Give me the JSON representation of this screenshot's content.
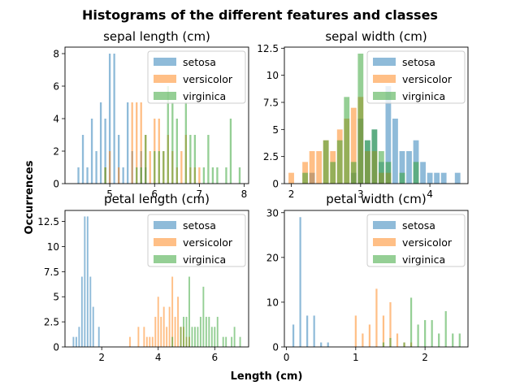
{
  "figure": {
    "title": "Histograms of the different features and classes",
    "xlabel": "Length (cm)",
    "ylabel": "Occurrences"
  },
  "legend_entries": [
    "setosa",
    "versicolor",
    "virginica"
  ],
  "colors": {
    "setosa": "#1f77b4",
    "versicolor": "#ff7f0e",
    "virginica": "#2ca02c"
  },
  "chart_data": [
    {
      "type": "bar",
      "title": "sepal length (cm)",
      "legend_position": "upper-right",
      "xlim": [
        4.0,
        8.1
      ],
      "ylim": [
        0,
        8.4
      ],
      "xticks": [
        5,
        6,
        7,
        8
      ],
      "yticks": [
        0,
        2,
        4,
        6,
        8
      ],
      "bin_width": 0.042,
      "series": [
        {
          "name": "setosa",
          "x": [
            4.3,
            4.4,
            4.5,
            4.6,
            4.7,
            4.8,
            4.9,
            5.0,
            5.1,
            5.2,
            5.3,
            5.4,
            5.5,
            5.7,
            5.8
          ],
          "values": [
            1,
            3,
            1,
            4,
            2,
            5,
            4,
            8,
            8,
            3,
            1,
            5,
            2,
            2,
            1
          ]
        },
        {
          "name": "versicolor",
          "x": [
            4.9,
            5.0,
            5.2,
            5.5,
            5.6,
            5.7,
            5.8,
            5.9,
            6.0,
            6.1,
            6.2,
            6.3,
            6.4,
            6.5,
            6.6,
            6.7,
            6.8,
            6.9,
            7.0
          ],
          "values": [
            1,
            2,
            1,
            5,
            5,
            5,
            3,
            2,
            4,
            4,
            2,
            3,
            2,
            1,
            2,
            3,
            1,
            1,
            1
          ]
        },
        {
          "name": "virginica",
          "x": [
            4.9,
            5.6,
            5.7,
            5.8,
            6.0,
            6.1,
            6.2,
            6.3,
            6.4,
            6.5,
            6.7,
            6.8,
            6.9,
            7.1,
            7.2,
            7.3,
            7.4,
            7.6,
            7.7,
            7.9
          ],
          "values": [
            1,
            1,
            1,
            3,
            2,
            2,
            2,
            6,
            5,
            4,
            5,
            3,
            3,
            1,
            3,
            1,
            1,
            1,
            4,
            1
          ]
        }
      ]
    },
    {
      "type": "bar",
      "title": "sepal width (cm)",
      "legend_position": "upper-right",
      "xlim": [
        1.9,
        4.55
      ],
      "ylim": [
        0,
        12.6
      ],
      "xticks": [
        2,
        3,
        4
      ],
      "yticks": [
        0,
        2.5,
        5.0,
        7.5,
        10.0,
        12.5
      ],
      "bin_width": 0.08,
      "series": [
        {
          "name": "setosa",
          "x": [
            2.3,
            2.9,
            3.0,
            3.1,
            3.2,
            3.3,
            3.4,
            3.5,
            3.6,
            3.7,
            3.8,
            3.9,
            4.0,
            4.1,
            4.2,
            4.4
          ],
          "values": [
            1,
            1,
            6,
            4,
            5,
            2,
            9,
            6,
            3,
            3,
            4,
            2,
            1,
            1,
            1,
            1
          ]
        },
        {
          "name": "versicolor",
          "x": [
            2.0,
            2.2,
            2.3,
            2.4,
            2.5,
            2.6,
            2.7,
            2.8,
            2.9,
            3.0,
            3.1,
            3.2,
            3.3,
            3.4
          ],
          "values": [
            1,
            2,
            3,
            3,
            4,
            3,
            5,
            6,
            7,
            8,
            3,
            3,
            1,
            1
          ]
        },
        {
          "name": "virginica",
          "x": [
            2.2,
            2.5,
            2.6,
            2.7,
            2.8,
            2.9,
            3.0,
            3.1,
            3.2,
            3.3,
            3.4,
            3.6,
            3.8
          ],
          "values": [
            1,
            4,
            2,
            4,
            8,
            2,
            12,
            4,
            5,
            3,
            2,
            1,
            2
          ]
        }
      ]
    },
    {
      "type": "bar",
      "title": "petal length (cm)",
      "legend_position": "upper-right",
      "xlim": [
        0.7,
        7.2
      ],
      "ylim": [
        0,
        13.6
      ],
      "xticks": [
        2,
        4,
        6
      ],
      "yticks": [
        0,
        2.5,
        5.0,
        7.5,
        10.0,
        12.5
      ],
      "bin_width": 0.055,
      "series": [
        {
          "name": "setosa",
          "x": [
            1.0,
            1.1,
            1.2,
            1.3,
            1.4,
            1.5,
            1.6,
            1.7,
            1.9
          ],
          "values": [
            1,
            1,
            2,
            7,
            13,
            13,
            7,
            4,
            2
          ]
        },
        {
          "name": "versicolor",
          "x": [
            3.0,
            3.3,
            3.5,
            3.6,
            3.7,
            3.8,
            3.9,
            4.0,
            4.1,
            4.2,
            4.3,
            4.4,
            4.5,
            4.6,
            4.7,
            4.8,
            4.9,
            5.0,
            5.1
          ],
          "values": [
            1,
            2,
            2,
            1,
            1,
            1,
            3,
            5,
            3,
            4,
            2,
            4,
            7,
            3,
            5,
            2,
            2,
            1,
            1
          ]
        },
        {
          "name": "virginica",
          "x": [
            4.5,
            4.8,
            4.9,
            5.0,
            5.1,
            5.2,
            5.3,
            5.4,
            5.5,
            5.6,
            5.7,
            5.8,
            5.9,
            6.0,
            6.1,
            6.3,
            6.4,
            6.6,
            6.7,
            6.9
          ],
          "values": [
            1,
            2,
            3,
            3,
            7,
            2,
            2,
            2,
            3,
            6,
            3,
            3,
            2,
            2,
            3,
            1,
            1,
            1,
            2,
            1
          ]
        }
      ]
    },
    {
      "type": "bar",
      "title": "petal width (cm)",
      "legend_position": "upper-right",
      "xlim": [
        -0.03,
        2.62
      ],
      "ylim": [
        0,
        30.5
      ],
      "xticks": [
        0,
        1,
        2
      ],
      "yticks": [
        0,
        10,
        20,
        30
      ],
      "bin_width": 0.026,
      "series": [
        {
          "name": "setosa",
          "x": [
            0.1,
            0.2,
            0.3,
            0.4,
            0.5,
            0.6
          ],
          "values": [
            5,
            29,
            7,
            7,
            1,
            1
          ]
        },
        {
          "name": "versicolor",
          "x": [
            1.0,
            1.1,
            1.2,
            1.3,
            1.4,
            1.5,
            1.6,
            1.7,
            1.8
          ],
          "values": [
            7,
            3,
            5,
            13,
            7,
            10,
            3,
            1,
            1
          ]
        },
        {
          "name": "virginica",
          "x": [
            1.4,
            1.5,
            1.7,
            1.8,
            1.9,
            2.0,
            2.1,
            2.2,
            2.3,
            2.4,
            2.5
          ],
          "values": [
            1,
            2,
            1,
            11,
            5,
            6,
            6,
            3,
            8,
            3,
            3
          ]
        }
      ]
    }
  ]
}
